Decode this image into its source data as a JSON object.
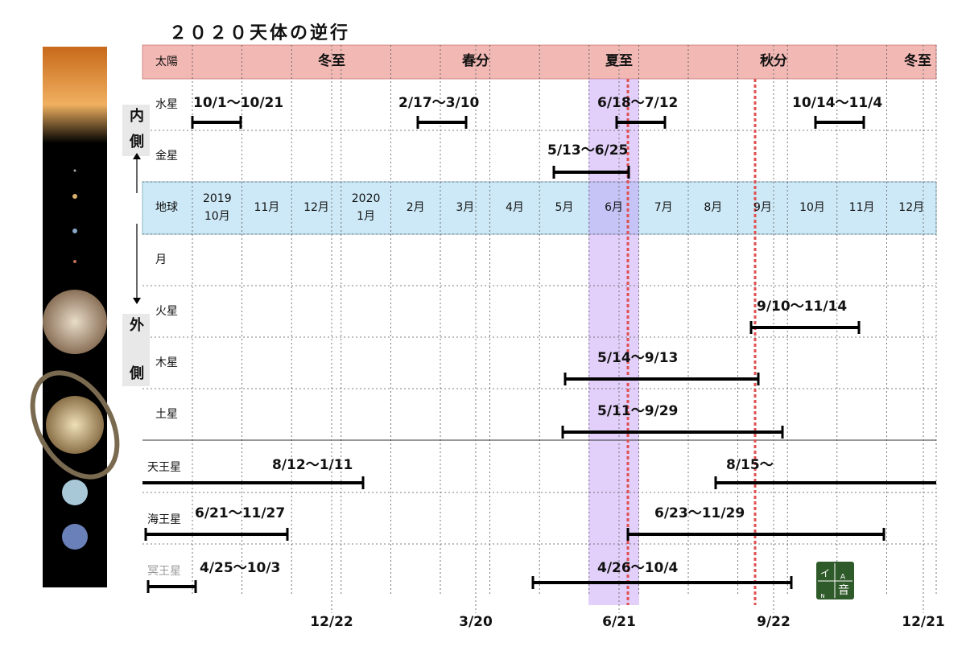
{
  "title": "２０２０天体の逆行",
  "sun": {
    "label": "太陽",
    "marks": [
      "冬至",
      "春分",
      "夏至",
      "秋分",
      "冬至"
    ]
  },
  "side": {
    "inner": [
      "内",
      "側"
    ],
    "outer": [
      "外",
      "側"
    ]
  },
  "earth": {
    "label": "地球",
    "months": [
      "2019\n10月",
      "11月",
      "12月",
      "2020\n1月",
      "2月",
      "3月",
      "4月",
      "5月",
      "6月",
      "7月",
      "8月",
      "9月",
      "10月",
      "11月",
      "12月"
    ]
  },
  "rows": [
    {
      "name": "水星",
      "periods": [
        "10/1～10/21",
        "2/17～3/10",
        "6/18～7/12",
        "10/14～11/4"
      ]
    },
    {
      "name": "金星",
      "periods": [
        "5/13～6/25"
      ]
    },
    {
      "name": "月",
      "periods": []
    },
    {
      "name": "火星",
      "periods": [
        "9/10～11/14"
      ]
    },
    {
      "name": "木星",
      "periods": [
        "5/14～9/13"
      ]
    },
    {
      "name": "土星",
      "periods": [
        "5/11～9/29"
      ]
    },
    {
      "name": "天王星",
      "periods": [
        "8/12～1/11",
        "8/15～"
      ]
    },
    {
      "name": "海王星",
      "periods": [
        "6/21～11/27",
        "6/23～11/29"
      ]
    },
    {
      "name": "冥王星",
      "periods": [
        "4/25～10/3",
        "4/26～10/4"
      ]
    }
  ],
  "bottom_dates": [
    "12/22",
    "3/20",
    "6/21",
    "9/22",
    "12/21"
  ],
  "logo": [
    "イ",
    "A",
    "N",
    "音"
  ]
}
